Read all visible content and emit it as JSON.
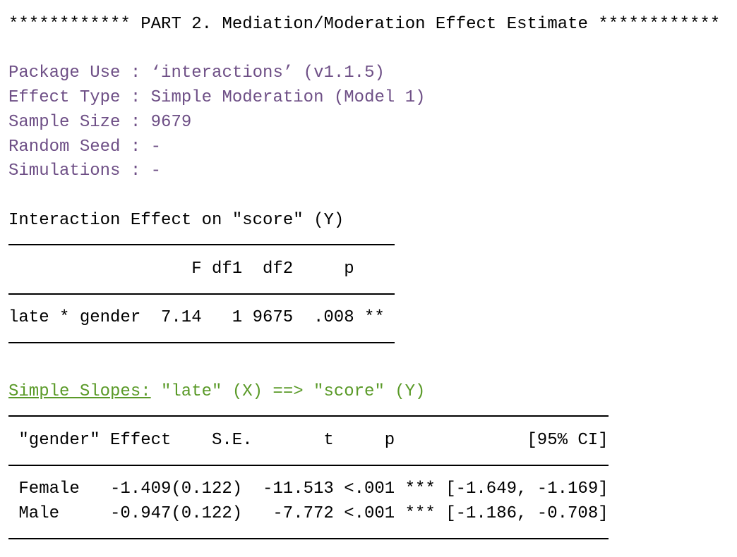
{
  "header": "************ PART 2. Mediation/Moderation Effect Estimate ************",
  "settings": [
    "Package Use : ‘interactions’ (v1.1.5)",
    "Effect Type : Simple Moderation (Model 1)",
    "Sample Size : 9679",
    "Random Seed : -",
    "Simulations : -"
  ],
  "interaction_table": {
    "title": "Interaction Effect on \"score\" (Y)",
    "columns": [
      "F",
      "df1",
      "df2",
      "p"
    ],
    "rows": [
      [
        "late * gender",
        "7.14",
        "1",
        "9675",
        ".008",
        "**"
      ]
    ]
  },
  "slopes_table": {
    "title_link": "Simple Slopes:",
    "title_rest": "\"late\" (X) ==> \"score\" (Y)",
    "columns": [
      "\"gender\"",
      "Effect",
      "S.E.",
      "t",
      "p",
      "[95% CI]"
    ],
    "rows": [
      [
        "Female",
        "-1.409",
        "(0.122)",
        "-11.513",
        "<.001",
        "***",
        "[-1.649, -1.169]"
      ],
      [
        "Male",
        "-0.947",
        "(0.122)",
        "-7.772",
        "<.001",
        "***",
        "[-1.186, -0.708]"
      ]
    ]
  }
}
